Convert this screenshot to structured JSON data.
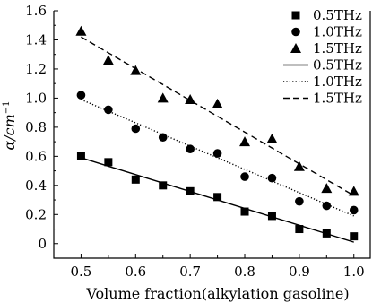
{
  "chart_data": {
    "type": "scatter",
    "title": "",
    "xlabel": "Volume fraction(alkylation gasoline)",
    "ylabel": "α/cm",
    "ylabel_superscript": "−1",
    "xlim": [
      0.45,
      1.03
    ],
    "ylim": [
      -0.1,
      1.6
    ],
    "xticks": [
      0.5,
      0.6,
      0.7,
      0.8,
      0.9,
      1.0
    ],
    "xtick_labels": [
      "0.5",
      "0.6",
      "0.7",
      "0.8",
      "0.9",
      "1.0"
    ],
    "yticks": [
      0,
      0.2,
      0.4,
      0.6,
      0.8,
      1.0,
      1.2,
      1.4,
      1.6
    ],
    "ytick_labels": [
      "0",
      "0.2",
      "0.4",
      "0.6",
      "0.8",
      "1.0",
      "1.2",
      "1.4",
      "1.6"
    ],
    "grid": false,
    "legend_position": "top-right",
    "x": [
      0.5,
      0.55,
      0.6,
      0.65,
      0.7,
      0.75,
      0.8,
      0.85,
      0.9,
      0.95,
      1.0
    ],
    "series": [
      {
        "name": "0.5THz",
        "marker": "square",
        "values": [
          0.6,
          0.56,
          0.44,
          0.4,
          0.36,
          0.32,
          0.22,
          0.19,
          0.1,
          0.07,
          0.05
        ]
      },
      {
        "name": "1.0THz",
        "marker": "circle",
        "values": [
          1.02,
          0.92,
          0.79,
          0.73,
          0.65,
          0.62,
          0.46,
          0.45,
          0.29,
          0.26,
          0.23
        ]
      },
      {
        "name": "1.5THz",
        "marker": "triangle",
        "values": [
          1.46,
          1.26,
          1.19,
          1.0,
          0.99,
          0.96,
          0.7,
          0.72,
          0.53,
          0.38,
          0.36
        ]
      }
    ],
    "fits": [
      {
        "name": "0.5THz",
        "style": "solid",
        "x": [
          0.5,
          1.0
        ],
        "y": [
          0.59,
          0.01
        ]
      },
      {
        "name": "1.0THz",
        "style": "dotted",
        "x": [
          0.5,
          1.0
        ],
        "y": [
          0.99,
          0.19
        ]
      },
      {
        "name": "1.5THz",
        "style": "dashed",
        "x": [
          0.5,
          1.0
        ],
        "y": [
          1.42,
          0.33
        ]
      }
    ]
  }
}
